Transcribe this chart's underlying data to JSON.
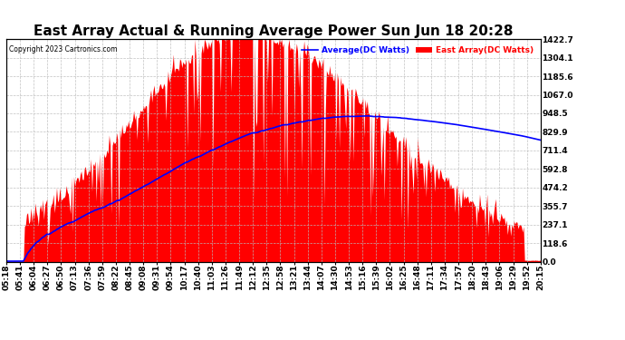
{
  "title": "East Array Actual & Running Average Power Sun Jun 18 20:28",
  "copyright": "Copyright 2023 Cartronics.com",
  "ylabel_right_ticks": [
    0.0,
    118.6,
    237.1,
    355.7,
    474.2,
    592.8,
    711.4,
    829.9,
    948.5,
    1067.0,
    1185.6,
    1304.1,
    1422.7
  ],
  "ymax": 1422.7,
  "ymin": 0.0,
  "legend_labels": [
    "Average(DC Watts)",
    "East Array(DC Watts)"
  ],
  "legend_colors": [
    "#0000FF",
    "#FF0000"
  ],
  "fill_color": "#FF0000",
  "line_color": "#0000FF",
  "background_color": "#FFFFFF",
  "grid_color": "#BBBBBB",
  "title_fontsize": 11,
  "tick_fontsize": 6.5,
  "x_labels": [
    "05:18",
    "05:41",
    "06:04",
    "06:27",
    "06:50",
    "07:13",
    "07:36",
    "07:59",
    "08:22",
    "08:45",
    "09:08",
    "09:31",
    "09:54",
    "10:17",
    "10:40",
    "11:03",
    "11:26",
    "11:49",
    "12:12",
    "12:35",
    "12:58",
    "13:21",
    "13:44",
    "14:07",
    "14:30",
    "14:53",
    "15:16",
    "15:39",
    "16:02",
    "16:25",
    "16:48",
    "17:11",
    "17:34",
    "17:57",
    "18:20",
    "18:43",
    "19:06",
    "19:29",
    "19:52",
    "20:15"
  ]
}
